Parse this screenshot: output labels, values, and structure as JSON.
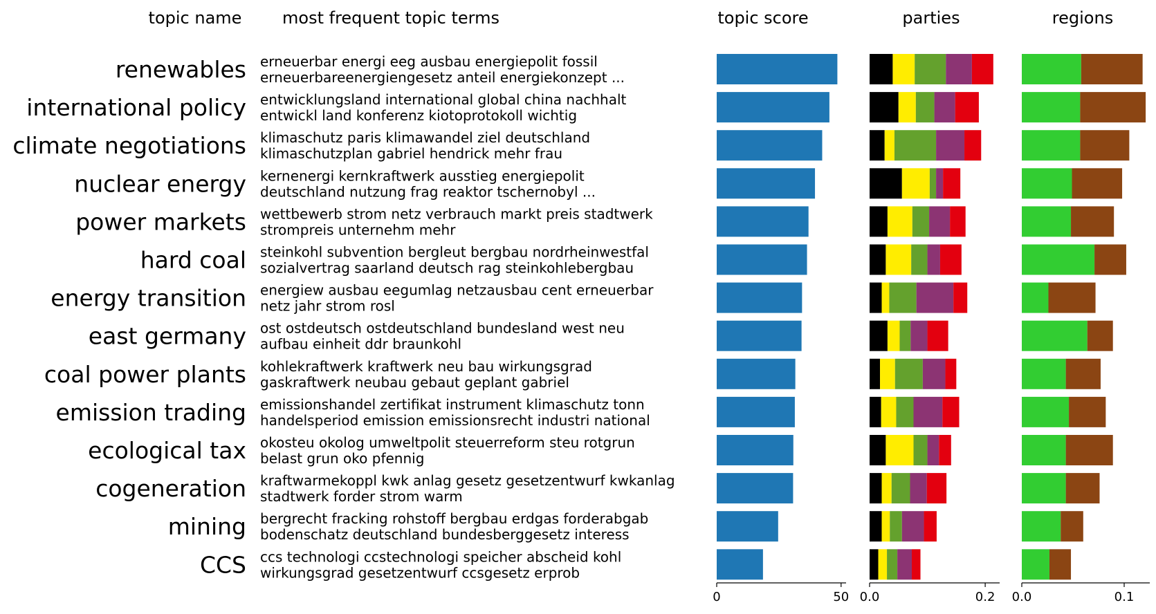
{
  "headers": {
    "topic_name": "topic name",
    "terms": "most frequent topic terms",
    "score": "topic score",
    "parties": "parties",
    "regions": "regions"
  },
  "chart_data": {
    "type": "bar",
    "orientation": "horizontal",
    "categories": [
      "renewables",
      "international policy",
      "climate negotiations",
      "nuclear energy",
      "power markets",
      "hard coal",
      "energy transition",
      "east germany",
      "coal power plants",
      "emission trading",
      "ecological tax",
      "cogeneration",
      "mining",
      "CCS"
    ],
    "terms": [
      [
        "erneuerbar energi eeg ausbau energiepolit fossil",
        "erneuerbareenergiengesetz anteil energiekonzept ..."
      ],
      [
        "entwicklungsland international global china nachhalt",
        "entwickl land konferenz kiotoprotokoll wichtig"
      ],
      [
        "klimaschutz paris klimawandel ziel deutschland",
        "klimaschutzplan gabriel hendrick mehr frau"
      ],
      [
        "kernenergi kernkraftwerk ausstieg energiepolit",
        "deutschland nutzung frag reaktor tschernobyl ..."
      ],
      [
        "wettbewerb strom netz verbrauch markt preis stadtwerk",
        "strompreis unternehm mehr"
      ],
      [
        "steinkohl subvention bergleut bergbau nordrheinwestfal",
        "sozialvertrag saarland deutsch rag steinkohlebergbau"
      ],
      [
        "energiew ausbau eegumlag netzausbau cent erneuerbar",
        "netz jahr strom rosl"
      ],
      [
        "ost ostdeutsch ostdeutschland bundesland west neu",
        "aufbau einheit ddr braunkohl"
      ],
      [
        "kohlekraftwerk kraftwerk neu bau wirkungsgrad",
        "gaskraftwerk neubau gebaut geplant gabriel"
      ],
      [
        "emissionshandel zertifikat instrument klimaschutz tonn",
        "handelsperiod emission emissionsrecht industri national"
      ],
      [
        "okosteu okolog umweltpolit steuerreform steu rotgrun",
        "belast grun oko pfennig"
      ],
      [
        "kraftwarmekoppl kwk anlag gesetz gesetzentwurf kwkanlag",
        "stadtwerk forder strom warm"
      ],
      [
        "bergrecht fracking rohstoff bergbau erdgas forderabgab",
        "bodenschatz deutschland bundesberggesetz interess"
      ],
      [
        "ccs technologi ccstechnologi speicher abscheid kohl",
        "wirkungsgrad gesetzentwurf ccsgesetz erprob"
      ]
    ],
    "panels": {
      "topic_score": {
        "xlim": [
          0,
          52
        ],
        "ticks": [
          "0",
          "50"
        ],
        "tick_values": [
          0,
          50
        ],
        "color": "#1f77b4",
        "values": [
          48.5,
          45.3,
          42.4,
          39.5,
          36.9,
          36.3,
          34.3,
          34.1,
          31.6,
          31.4,
          30.8,
          30.7,
          24.7,
          18.6
        ]
      },
      "parties": {
        "xlim": [
          0,
          0.225
        ],
        "ticks": [
          "0.0",
          "0.2"
        ],
        "tick_values": [
          0,
          0.2
        ],
        "series": [
          {
            "color": "#000000",
            "values": [
              0.04,
              0.05,
              0.026,
              0.056,
              0.031,
              0.028,
              0.021,
              0.031,
              0.018,
              0.02,
              0.028,
              0.021,
              0.021,
              0.015
            ]
          },
          {
            "color": "#ffed00",
            "values": [
              0.038,
              0.03,
              0.017,
              0.048,
              0.043,
              0.044,
              0.013,
              0.021,
              0.026,
              0.026,
              0.048,
              0.017,
              0.014,
              0.015
            ]
          },
          {
            "color": "#64a12d",
            "values": [
              0.054,
              0.032,
              0.072,
              0.011,
              0.029,
              0.028,
              0.047,
              0.019,
              0.048,
              0.03,
              0.024,
              0.032,
              0.021,
              0.018
            ]
          },
          {
            "color": "#8c3473",
            "values": [
              0.045,
              0.036,
              0.049,
              0.012,
              0.036,
              0.022,
              0.064,
              0.029,
              0.039,
              0.05,
              0.02,
              0.029,
              0.038,
              0.025
            ]
          },
          {
            "color": "#e3000f",
            "values": [
              0.037,
              0.041,
              0.029,
              0.03,
              0.027,
              0.037,
              0.024,
              0.036,
              0.019,
              0.029,
              0.021,
              0.034,
              0.022,
              0.015
            ]
          }
        ]
      },
      "regions": {
        "xlim": [
          0,
          0.125
        ],
        "ticks": [
          "0.0",
          "0.1"
        ],
        "tick_values": [
          0,
          0.1
        ],
        "series": [
          {
            "color": "#32cd32",
            "values": [
              0.058,
              0.057,
              0.057,
              0.049,
              0.048,
              0.071,
              0.026,
              0.064,
              0.043,
              0.046,
              0.043,
              0.043,
              0.038,
              0.027
            ]
          },
          {
            "color": "#8b4513",
            "values": [
              0.06,
              0.064,
              0.048,
              0.049,
              0.042,
              0.031,
              0.046,
              0.025,
              0.034,
              0.036,
              0.046,
              0.033,
              0.022,
              0.021
            ]
          }
        ]
      }
    }
  }
}
